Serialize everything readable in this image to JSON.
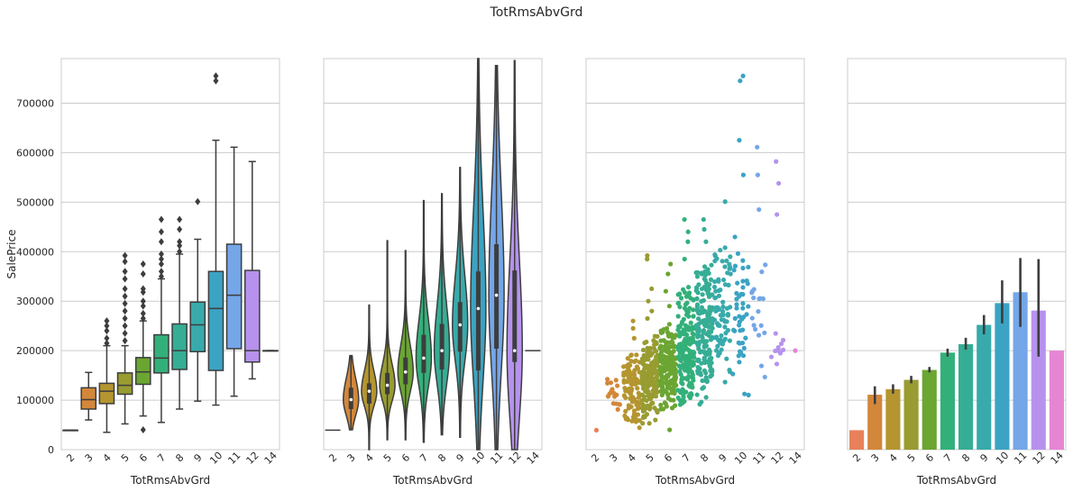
{
  "chart_data": {
    "suptitle": "TotRmsAbvGrd",
    "shared": {
      "categories": [
        "2",
        "3",
        "4",
        "5",
        "6",
        "7",
        "8",
        "9",
        "10",
        "11",
        "12",
        "14"
      ],
      "colors": [
        "#e8815a",
        "#d3873a",
        "#b5952f",
        "#989c31",
        "#6ba532",
        "#33b07a",
        "#36ad95",
        "#38aaab",
        "#3ba3c3",
        "#74a6e8",
        "#b692ee",
        "#e685d4"
      ],
      "xlabel": "TotRmsAbvGrd",
      "ylabel": "SalePrice",
      "ylim": [
        0,
        790000
      ],
      "yticks": [
        0,
        100000,
        200000,
        300000,
        400000,
        500000,
        600000,
        700000
      ],
      "grid": "horizontal"
    },
    "panels": [
      {
        "type": "box",
        "boxes": [
          {
            "cat": "2",
            "q1": 39300,
            "median": 39300,
            "q3": 39300,
            "whislo": 39300,
            "whishi": 39300,
            "fliers": []
          },
          {
            "cat": "3",
            "q1": 82000,
            "median": 101000,
            "q3": 125000,
            "whislo": 60000,
            "whishi": 156000,
            "fliers": []
          },
          {
            "cat": "4",
            "q1": 93000,
            "median": 118000,
            "q3": 134000,
            "whislo": 35000,
            "whishi": 210000,
            "fliers": [
              215000,
              225000,
              240000,
              250000,
              260000
            ]
          },
          {
            "cat": "5",
            "q1": 112000,
            "median": 130000,
            "q3": 155000,
            "whislo": 52000,
            "whishi": 210000,
            "fliers": [
              220000,
              235000,
              250000,
              265000,
              280000,
              295000,
              310000,
              325000,
              345000,
              360000,
              380000,
              392000
            ]
          },
          {
            "cat": "6",
            "q1": 132000,
            "median": 157000,
            "q3": 186000,
            "whislo": 68000,
            "whishi": 260000,
            "fliers": [
              40000,
              265000,
              275000,
              290000,
              300000,
              318000,
              325000,
              355000,
              375000
            ]
          },
          {
            "cat": "7",
            "q1": 155000,
            "median": 185000,
            "q3": 232000,
            "whislo": 55000,
            "whishi": 345000,
            "fliers": [
              350000,
              360000,
              375000,
              385000,
              395000,
              420000,
              440000,
              465000
            ]
          },
          {
            "cat": "8",
            "q1": 162000,
            "median": 200000,
            "q3": 254000,
            "whislo": 82000,
            "whishi": 395000,
            "fliers": [
              400000,
              412000,
              420000,
              445000,
              465000
            ]
          },
          {
            "cat": "9",
            "q1": 198000,
            "median": 252000,
            "q3": 298000,
            "whislo": 98000,
            "whishi": 425000,
            "fliers": [
              501000
            ]
          },
          {
            "cat": "10",
            "q1": 160000,
            "median": 285000,
            "q3": 360000,
            "whislo": 90000,
            "whishi": 625000,
            "fliers": [
              745000,
              755000
            ]
          },
          {
            "cat": "11",
            "q1": 204000,
            "median": 312000,
            "q3": 415000,
            "whislo": 108000,
            "whishi": 611000,
            "fliers": []
          },
          {
            "cat": "12",
            "q1": 177000,
            "median": 200000,
            "q3": 362000,
            "whislo": 143000,
            "whishi": 582000,
            "fliers": []
          },
          {
            "cat": "14",
            "q1": 200000,
            "median": 200000,
            "q3": 200000,
            "whislo": 200000,
            "whishi": 200000,
            "fliers": []
          }
        ]
      },
      {
        "type": "violin",
        "violins": [
          {
            "cat": "2",
            "min": 39300,
            "max": 39300,
            "q1": 39300,
            "median": 39300,
            "q3": 39300
          },
          {
            "cat": "3",
            "min": 40000,
            "max": 190000,
            "q1": 82000,
            "median": 101000,
            "q3": 125000
          },
          {
            "cat": "4",
            "min": 0,
            "max": 292000,
            "q1": 93000,
            "median": 118000,
            "q3": 134000
          },
          {
            "cat": "5",
            "min": 20000,
            "max": 422000,
            "q1": 112000,
            "median": 130000,
            "q3": 155000
          },
          {
            "cat": "6",
            "min": 20000,
            "max": 402000,
            "q1": 132000,
            "median": 157000,
            "q3": 186000
          },
          {
            "cat": "7",
            "min": 15000,
            "max": 503000,
            "q1": 155000,
            "median": 185000,
            "q3": 232000
          },
          {
            "cat": "8",
            "min": 30000,
            "max": 517000,
            "q1": 162000,
            "median": 200000,
            "q3": 254000
          },
          {
            "cat": "9",
            "min": 25000,
            "max": 570000,
            "q1": 198000,
            "median": 252000,
            "q3": 298000
          },
          {
            "cat": "10",
            "min": 0,
            "max": 790000,
            "q1": 160000,
            "median": 285000,
            "q3": 360000
          },
          {
            "cat": "11",
            "min": 0,
            "max": 776000,
            "q1": 204000,
            "median": 312000,
            "q3": 415000
          },
          {
            "cat": "12",
            "min": 0,
            "max": 786000,
            "q1": 177000,
            "median": 200000,
            "q3": 362000
          },
          {
            "cat": "14",
            "min": 200000,
            "max": 200000,
            "q1": 200000,
            "median": 200000,
            "q3": 200000
          }
        ]
      },
      {
        "type": "swarm",
        "groups": [
          {
            "cat": "2",
            "n": 1,
            "lo": 39300,
            "hi": 39300,
            "extra": []
          },
          {
            "cat": "3",
            "n": 17,
            "lo": 60000,
            "hi": 156000,
            "extra": []
          },
          {
            "cat": "4",
            "n": 97,
            "lo": 35000,
            "hi": 210000,
            "extra": [
              225000,
              245000,
              260000
            ]
          },
          {
            "cat": "5",
            "n": 275,
            "lo": 52000,
            "hi": 240000,
            "extra": [
              265000,
              280000,
              300000,
              325000,
              385000,
              392000
            ]
          },
          {
            "cat": "6",
            "n": 402,
            "lo": 68000,
            "hi": 260000,
            "extra": [
              40000,
              290000,
              320000,
              355000,
              375000
            ]
          },
          {
            "cat": "7",
            "n": 329,
            "lo": 55000,
            "hi": 345000,
            "extra": [
              385000,
              420000,
              440000,
              465000
            ]
          },
          {
            "cat": "8",
            "n": 187,
            "lo": 82000,
            "hi": 395000,
            "extra": [
              420000,
              445000,
              465000
            ]
          },
          {
            "cat": "9",
            "n": 75,
            "lo": 98000,
            "hi": 425000,
            "extra": [
              501000
            ]
          },
          {
            "cat": "10",
            "n": 47,
            "lo": 90000,
            "hi": 452000,
            "extra": [
              555000,
              625000,
              745000,
              755000
            ]
          },
          {
            "cat": "11",
            "n": 18,
            "lo": 108000,
            "hi": 440000,
            "extra": [
              485000,
              555000,
              611000
            ]
          },
          {
            "cat": "12",
            "n": 11,
            "lo": 143000,
            "hi": 250000,
            "extra": [
              475000,
              538000,
              582000
            ]
          },
          {
            "cat": "14",
            "n": 1,
            "lo": 200000,
            "hi": 200000,
            "extra": []
          }
        ]
      },
      {
        "type": "bar",
        "bars": [
          {
            "cat": "2",
            "value": 39300,
            "ci": null
          },
          {
            "cat": "3",
            "value": 111000,
            "ci": [
              92000,
              128000
            ]
          },
          {
            "cat": "4",
            "value": 122000,
            "ci": [
              113000,
              132000
            ]
          },
          {
            "cat": "5",
            "value": 141000,
            "ci": [
              134000,
              149000
            ]
          },
          {
            "cat": "6",
            "value": 161000,
            "ci": [
              156000,
              167000
            ]
          },
          {
            "cat": "7",
            "value": 196000,
            "ci": [
              188000,
              204000
            ]
          },
          {
            "cat": "8",
            "value": 213000,
            "ci": [
              202000,
              226000
            ]
          },
          {
            "cat": "9",
            "value": 252000,
            "ci": [
              233000,
              272000
            ]
          },
          {
            "cat": "10",
            "value": 296000,
            "ci": [
              255000,
              342000
            ]
          },
          {
            "cat": "11",
            "value": 318000,
            "ci": [
              248000,
              387000
            ]
          },
          {
            "cat": "12",
            "value": 281000,
            "ci": [
              188000,
              385000
            ]
          },
          {
            "cat": "14",
            "value": 200000,
            "ci": null
          }
        ]
      }
    ]
  }
}
